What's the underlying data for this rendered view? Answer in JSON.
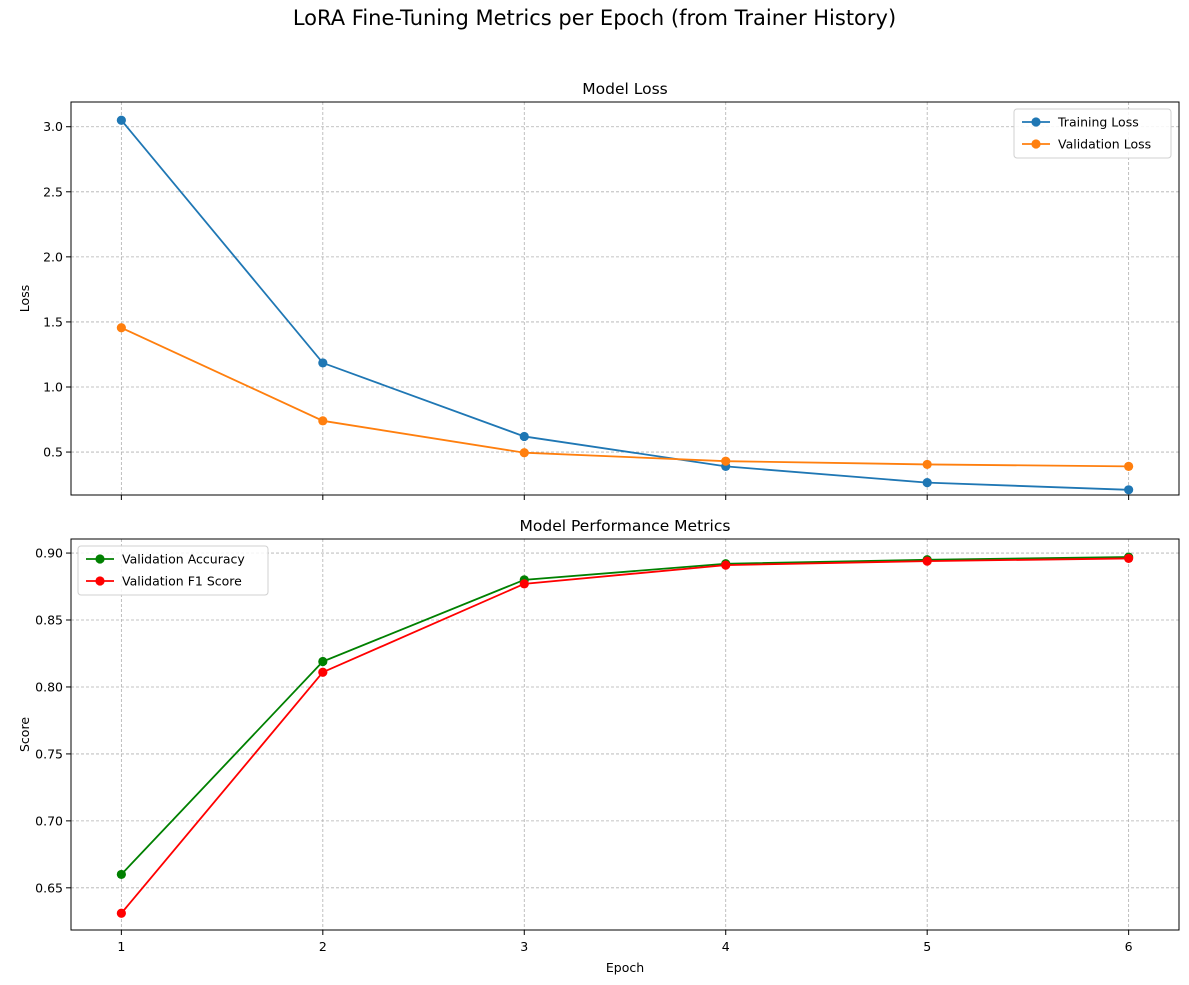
{
  "figure_title": "LoRA Fine-Tuning Metrics per Epoch (from Trainer History)",
  "chart_data": [
    {
      "type": "line",
      "title": "Model Loss",
      "xlabel": "",
      "ylabel": "Loss",
      "x": [
        1,
        2,
        3,
        4,
        5,
        6
      ],
      "xticks": [
        "1",
        "2",
        "3",
        "4",
        "5",
        "6"
      ],
      "show_xtick_labels": false,
      "xlim": [
        0.75,
        6.25
      ],
      "ylim": [
        0.17,
        3.19
      ],
      "yticks": [
        0.5,
        1.0,
        1.5,
        2.0,
        2.5,
        3.0
      ],
      "ytick_labels": [
        "0.5",
        "1.0",
        "1.5",
        "2.0",
        "2.5",
        "3.0"
      ],
      "grid": true,
      "legend_position": "top-right",
      "series": [
        {
          "name": "Training Loss",
          "color": "#1f77b4",
          "values": [
            3.05,
            1.185,
            0.62,
            0.39,
            0.265,
            0.21
          ]
        },
        {
          "name": "Validation Loss",
          "color": "#ff7f0e",
          "values": [
            1.455,
            0.74,
            0.495,
            0.43,
            0.405,
            0.39
          ]
        }
      ]
    },
    {
      "type": "line",
      "title": "Model Performance Metrics",
      "xlabel": "Epoch",
      "ylabel": "Score",
      "x": [
        1,
        2,
        3,
        4,
        5,
        6
      ],
      "xticks": [
        "1",
        "2",
        "3",
        "4",
        "5",
        "6"
      ],
      "show_xtick_labels": true,
      "xlim": [
        0.75,
        6.25
      ],
      "ylim": [
        0.6185,
        0.9105
      ],
      "yticks": [
        0.65,
        0.7,
        0.75,
        0.8,
        0.85,
        0.9
      ],
      "ytick_labels": [
        "0.65",
        "0.70",
        "0.75",
        "0.80",
        "0.85",
        "0.90"
      ],
      "grid": true,
      "legend_position": "top-left",
      "series": [
        {
          "name": "Validation Accuracy",
          "color": "#008000",
          "values": [
            0.66,
            0.819,
            0.88,
            0.892,
            0.895,
            0.897
          ]
        },
        {
          "name": "Validation F1 Score",
          "color": "#ff0000",
          "values": [
            0.631,
            0.811,
            0.877,
            0.891,
            0.894,
            0.896
          ]
        }
      ]
    }
  ]
}
